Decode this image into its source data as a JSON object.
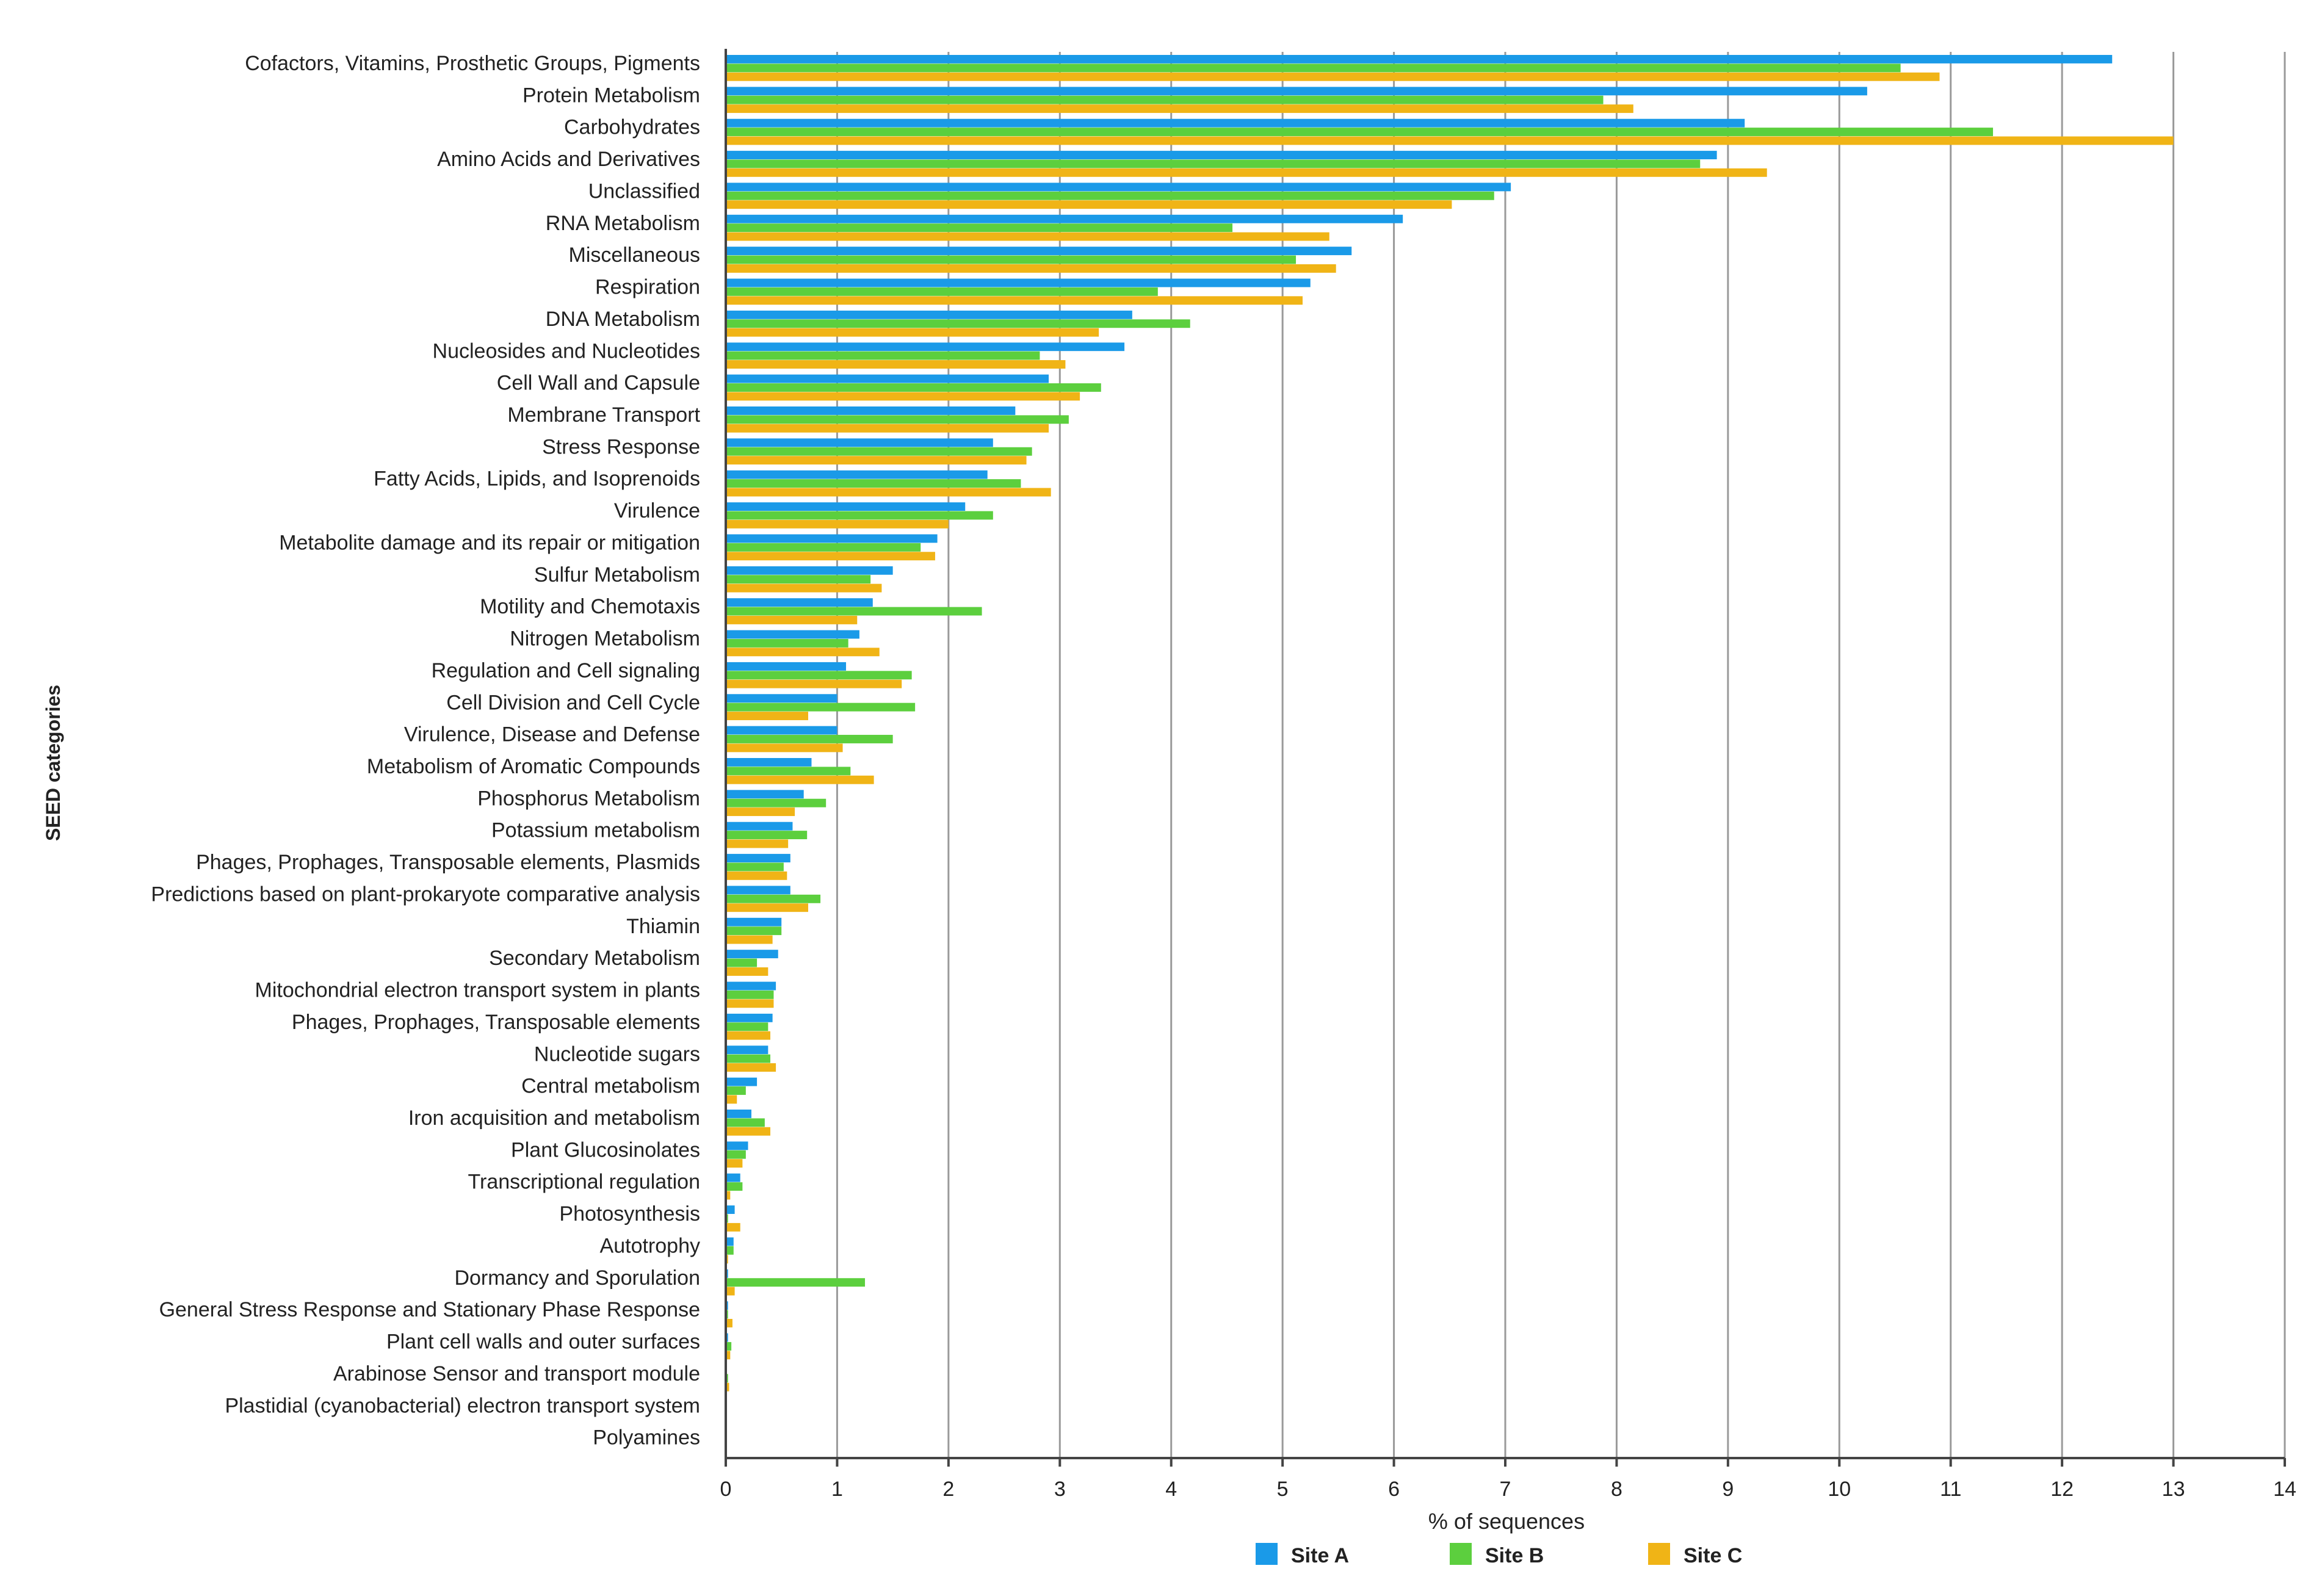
{
  "chart_data": {
    "type": "bar",
    "orientation": "horizontal",
    "title": "",
    "xlabel": "% of sequences",
    "ylabel": "SEED categories",
    "xlim": [
      0,
      14
    ],
    "xticks": [
      0,
      1,
      2,
      3,
      4,
      5,
      6,
      7,
      8,
      9,
      10,
      11,
      12,
      13,
      14
    ],
    "grid": "vertical",
    "legend_position": "bottom",
    "categories": [
      "Cofactors, Vitamins, Prosthetic Groups, Pigments",
      "Protein Metabolism",
      "Carbohydrates",
      "Amino Acids and Derivatives",
      "Unclassified",
      "RNA Metabolism",
      "Miscellaneous",
      "Respiration",
      "DNA Metabolism",
      "Nucleosides and Nucleotides",
      "Cell Wall and Capsule",
      "Membrane Transport",
      "Stress Response",
      "Fatty Acids, Lipids, and Isoprenoids",
      "Virulence",
      "Metabolite damage and its repair or mitigation",
      "Sulfur Metabolism",
      "Motility and Chemotaxis",
      "Nitrogen Metabolism",
      "Regulation and Cell signaling",
      "Cell Division and Cell Cycle",
      "Virulence, Disease and Defense",
      "Metabolism of Aromatic Compounds",
      "Phosphorus Metabolism",
      "Potassium metabolism",
      "Phages, Prophages, Transposable elements, Plasmids",
      "Predictions based on plant-prokaryote comparative analysis",
      "Thiamin",
      "Secondary Metabolism",
      "Mitochondrial electron transport system in plants",
      "Phages, Prophages, Transposable elements",
      "Nucleotide sugars",
      "Central metabolism",
      "Iron acquisition and metabolism",
      "Plant Glucosinolates",
      "Transcriptional regulation",
      "Photosynthesis",
      "Autotrophy",
      "Dormancy and Sporulation",
      "General Stress Response and Stationary Phase Response",
      "Plant cell walls and outer surfaces",
      "Arabinose Sensor and transport module",
      "Plastidial (cyanobacterial) electron transport system",
      "Polyamines"
    ],
    "series": [
      {
        "name": "Site A",
        "color": "#1a9ae8",
        "values": [
          12.45,
          10.25,
          9.15,
          8.9,
          7.05,
          6.08,
          5.62,
          5.25,
          3.65,
          3.58,
          2.9,
          2.6,
          2.4,
          2.35,
          2.15,
          1.9,
          1.5,
          1.32,
          1.2,
          1.08,
          1.0,
          1.0,
          0.77,
          0.7,
          0.6,
          0.58,
          0.58,
          0.5,
          0.47,
          0.45,
          0.42,
          0.38,
          0.28,
          0.23,
          0.2,
          0.13,
          0.08,
          0.07,
          0.02,
          0.02,
          0.02,
          0.01,
          0.01,
          0.0
        ]
      },
      {
        "name": "Site B",
        "color": "#5ccf3e",
        "values": [
          10.55,
          7.88,
          11.38,
          8.75,
          6.9,
          4.55,
          5.12,
          3.88,
          4.17,
          2.82,
          3.37,
          3.08,
          2.75,
          2.65,
          2.4,
          1.75,
          1.3,
          2.3,
          1.1,
          1.67,
          1.7,
          1.5,
          1.12,
          0.9,
          0.73,
          0.52,
          0.85,
          0.5,
          0.28,
          0.43,
          0.38,
          0.4,
          0.18,
          0.35,
          0.18,
          0.15,
          0.02,
          0.07,
          1.25,
          0.02,
          0.05,
          0.02,
          0.01,
          0.0
        ]
      },
      {
        "name": "Site C",
        "color": "#f0b416",
        "values": [
          10.9,
          8.15,
          13.0,
          9.35,
          6.52,
          5.42,
          5.48,
          5.18,
          3.35,
          3.05,
          3.18,
          2.9,
          2.7,
          2.92,
          2.0,
          1.88,
          1.4,
          1.18,
          1.38,
          1.58,
          0.74,
          1.05,
          1.33,
          0.62,
          0.56,
          0.55,
          0.74,
          0.42,
          0.38,
          0.43,
          0.4,
          0.45,
          0.1,
          0.4,
          0.15,
          0.04,
          0.13,
          0.02,
          0.08,
          0.06,
          0.04,
          0.03,
          0.01,
          0.0
        ]
      }
    ]
  }
}
